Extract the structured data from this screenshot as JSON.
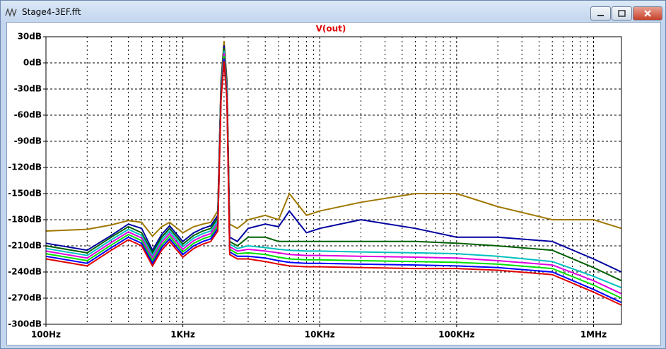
{
  "window_title": "Stage4-3EF.fft",
  "chart_data": {
    "type": "line",
    "title": "V(out)",
    "xscale": "log",
    "grid": true,
    "xlim": [
      100,
      1600000
    ],
    "xticks": [
      {
        "value": 100,
        "label": "100Hz"
      },
      {
        "value": 1000,
        "label": "1KHz"
      },
      {
        "value": 10000,
        "label": "10KHz"
      },
      {
        "value": 100000,
        "label": "100KHz"
      },
      {
        "value": 1000000,
        "label": "1MHz"
      }
    ],
    "xminorticks": [
      200,
      300,
      400,
      500,
      600,
      700,
      800,
      900,
      2000,
      3000,
      4000,
      5000,
      6000,
      7000,
      8000,
      9000,
      20000,
      30000,
      40000,
      50000,
      60000,
      70000,
      80000,
      90000,
      200000,
      300000,
      400000,
      500000,
      600000,
      700000,
      800000,
      900000
    ],
    "ylim": [
      -300,
      30
    ],
    "yticks": [
      {
        "value": 30,
        "label": "30dB"
      },
      {
        "value": 0,
        "label": "0dB"
      },
      {
        "value": -30,
        "label": "-30dB"
      },
      {
        "value": -60,
        "label": "-60dB"
      },
      {
        "value": -90,
        "label": "-90dB"
      },
      {
        "value": -120,
        "label": "-120dB"
      },
      {
        "value": -150,
        "label": "-150dB"
      },
      {
        "value": -180,
        "label": "-180dB"
      },
      {
        "value": -210,
        "label": "-210dB"
      },
      {
        "value": -240,
        "label": "-240dB"
      },
      {
        "value": -270,
        "label": "-270dB"
      },
      {
        "value": -300,
        "label": "-300dB"
      }
    ],
    "x": [
      100,
      200,
      300,
      400,
      500,
      600,
      700,
      800,
      1000,
      1200,
      1400,
      1600,
      1800,
      1900,
      2000,
      2100,
      2200,
      2500,
      3000,
      4000,
      5000,
      6000,
      8000,
      10000,
      20000,
      50000,
      100000,
      200000,
      500000,
      1000000,
      1600000
    ],
    "series": [
      {
        "color": "#a07800",
        "values": [
          -193,
          -191,
          -186,
          -181,
          -183,
          -199,
          -188,
          -183,
          -195,
          -188,
          -185,
          -183,
          -170,
          -20,
          25,
          -20,
          -185,
          -190,
          -180,
          -175,
          -180,
          -150,
          -175,
          -170,
          -160,
          -150,
          -150,
          -165,
          -180,
          -180,
          -190
        ]
      },
      {
        "color": "#0000a0",
        "values": [
          -207,
          -215,
          -198,
          -185,
          -190,
          -215,
          -197,
          -187,
          -205,
          -195,
          -190,
          -187,
          -175,
          -25,
          20,
          -25,
          -200,
          -205,
          -190,
          -185,
          -188,
          -170,
          -195,
          -190,
          -180,
          -190,
          -200,
          -200,
          -205,
          -225,
          -240
        ]
      },
      {
        "color": "#006000",
        "values": [
          -210,
          -218,
          -200,
          -188,
          -195,
          -218,
          -200,
          -190,
          -208,
          -198,
          -193,
          -190,
          -178,
          -28,
          17,
          -28,
          -205,
          -210,
          -200,
          -200,
          -205,
          -205,
          -205,
          -205,
          -205,
          -205,
          -207,
          -210,
          -215,
          -235,
          -250
        ]
      },
      {
        "color": "#00c0c0",
        "values": [
          -213,
          -221,
          -203,
          -191,
          -198,
          -221,
          -203,
          -193,
          -211,
          -201,
          -196,
          -193,
          -181,
          -31,
          14,
          -31,
          -208,
          -213,
          -210,
          -212,
          -214,
          -215,
          -216,
          -216,
          -217,
          -218,
          -219,
          -222,
          -228,
          -245,
          -258
        ]
      },
      {
        "color": "#e000e0",
        "values": [
          -216,
          -224,
          -206,
          -194,
          -201,
          -224,
          -206,
          -196,
          -214,
          -204,
          -199,
          -196,
          -184,
          -34,
          11,
          -34,
          -211,
          -216,
          -214,
          -216,
          -218,
          -220,
          -221,
          -221,
          -222,
          -223,
          -224,
          -227,
          -232,
          -250,
          -265
        ]
      },
      {
        "color": "#00e000",
        "values": [
          -219,
          -227,
          -209,
          -197,
          -204,
          -227,
          -209,
          -199,
          -217,
          -207,
          -202,
          -199,
          -187,
          -37,
          8,
          -37,
          -214,
          -219,
          -218,
          -220,
          -223,
          -225,
          -226,
          -226,
          -227,
          -228,
          -229,
          -231,
          -236,
          -255,
          -270
        ]
      },
      {
        "color": "#0000ff",
        "values": [
          -222,
          -230,
          -212,
          -200,
          -207,
          -230,
          -212,
          -202,
          -220,
          -210,
          -205,
          -202,
          -190,
          -40,
          5,
          -40,
          -217,
          -222,
          -222,
          -224,
          -227,
          -229,
          -230,
          -230,
          -231,
          -232,
          -233,
          -235,
          -240,
          -260,
          -275
        ]
      },
      {
        "color": "#e00000",
        "values": [
          -225,
          -233,
          -215,
          -203,
          -210,
          -233,
          -215,
          -205,
          -223,
          -213,
          -208,
          -205,
          -193,
          -43,
          2,
          -43,
          -220,
          -225,
          -225,
          -228,
          -231,
          -233,
          -234,
          -234,
          -235,
          -236,
          -236,
          -238,
          -243,
          -263,
          -278
        ]
      }
    ]
  }
}
